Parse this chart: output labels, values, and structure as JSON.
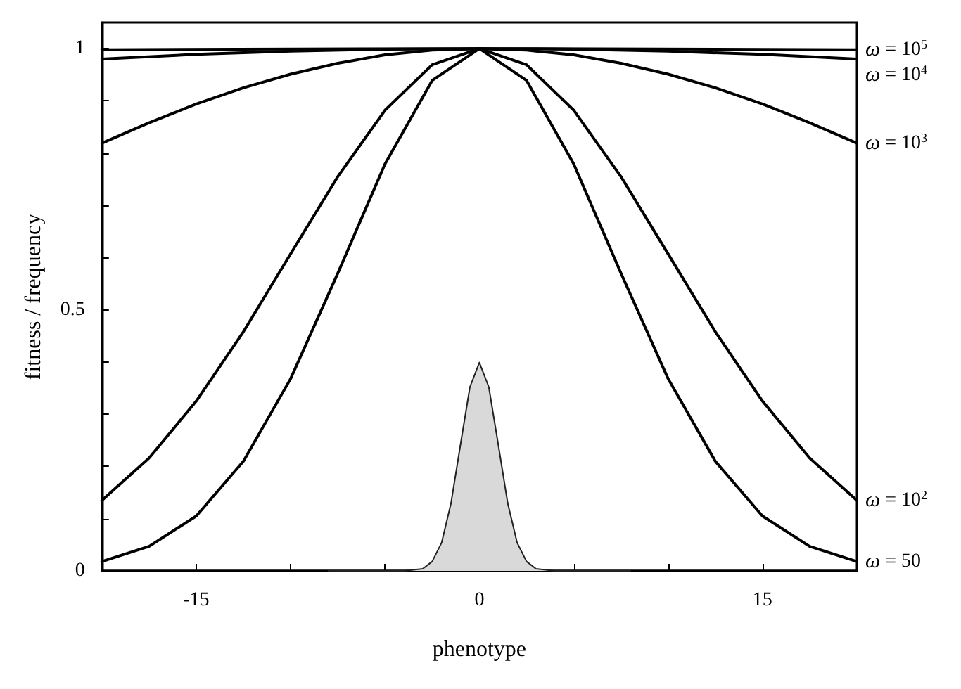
{
  "chart_data": {
    "type": "line",
    "xlabel": "phenotype",
    "ylabel": "fitness / frequency",
    "xlim": [
      -20,
      20
    ],
    "ylim": [
      0,
      1.05
    ],
    "xticks": [
      {
        "value": -20,
        "label": null
      },
      -15,
      {
        "value": -10,
        "label": null
      },
      {
        "value": -5,
        "label": null
      },
      0,
      {
        "value": 5,
        "label": null
      },
      {
        "value": 10,
        "label": null
      },
      15,
      {
        "value": 20,
        "label": null
      }
    ],
    "yticks": [
      0,
      {
        "value": 0.1,
        "label": null
      },
      {
        "value": 0.2,
        "label": null
      },
      {
        "value": 0.3,
        "label": null
      },
      {
        "value": 0.4,
        "label": null
      },
      0.5,
      {
        "value": 0.6,
        "label": null
      },
      {
        "value": 0.7,
        "label": null
      },
      {
        "value": 0.8,
        "label": null
      },
      {
        "value": 0.9,
        "label": null
      },
      1
    ],
    "grid": false,
    "marker": "none",
    "line_style": "solid",
    "series": [
      {
        "name": "ω = 10$^{5}$",
        "color": "#000000",
        "x": [
          -20,
          0,
          20
        ],
        "values": [
          0.998,
          1,
          0.998
        ]
      },
      {
        "name": "ω = 10$^{4}$",
        "color": "#000000",
        "x": [
          -20,
          -15,
          -10,
          -5,
          0,
          5,
          10,
          15,
          20
        ],
        "values": [
          0.98,
          0.989,
          0.995,
          0.999,
          1,
          0.999,
          0.995,
          0.989,
          0.98
        ]
      },
      {
        "name": "ω = 10$^{3}$",
        "color": "#000000",
        "x": [
          -20,
          -17.5,
          -15,
          -12.5,
          -10,
          -7.5,
          -5,
          -2.5,
          0,
          2.5,
          5,
          7.5,
          10,
          12.5,
          15,
          17.5,
          20
        ],
        "values": [
          0.819,
          0.858,
          0.894,
          0.925,
          0.951,
          0.972,
          0.988,
          0.997,
          1,
          0.997,
          0.988,
          0.972,
          0.951,
          0.925,
          0.894,
          0.858,
          0.819
        ]
      },
      {
        "name": "ω = 10$^{2}$",
        "color": "#000000",
        "x": [
          -20,
          -17.5,
          -15,
          -12.5,
          -10,
          -7.5,
          -5,
          -2.5,
          0,
          2.5,
          5,
          7.5,
          10,
          12.5,
          15,
          17.5,
          20
        ],
        "values": [
          0.135,
          0.216,
          0.325,
          0.458,
          0.607,
          0.755,
          0.882,
          0.969,
          1,
          0.969,
          0.882,
          0.755,
          0.607,
          0.458,
          0.325,
          0.216,
          0.135
        ]
      },
      {
        "name": "ω = 50",
        "color": "#000000",
        "x": [
          -20,
          -17.5,
          -15,
          -12.5,
          -10,
          -7.5,
          -5,
          -2.5,
          0,
          2.5,
          5,
          7.5,
          10,
          12.5,
          15,
          17.5,
          20
        ],
        "values": [
          0.018,
          0.047,
          0.105,
          0.21,
          0.368,
          0.57,
          0.779,
          0.939,
          1,
          0.939,
          0.779,
          0.57,
          0.368,
          0.21,
          0.105,
          0.047,
          0.018
        ]
      },
      {
        "type": "area",
        "color": "#d9d9d9",
        "x": [
          -8,
          -4,
          -3,
          -2.5,
          -2,
          -1.5,
          -1,
          -0.5,
          0,
          0.5,
          1,
          1.5,
          2,
          2.5,
          3,
          4,
          8
        ],
        "values": [
          0,
          0,
          0.004,
          0.018,
          0.054,
          0.13,
          0.242,
          0.352,
          0.399,
          0.352,
          0.242,
          0.13,
          0.054,
          0.018,
          0.004,
          0,
          0
        ]
      }
    ]
  }
}
